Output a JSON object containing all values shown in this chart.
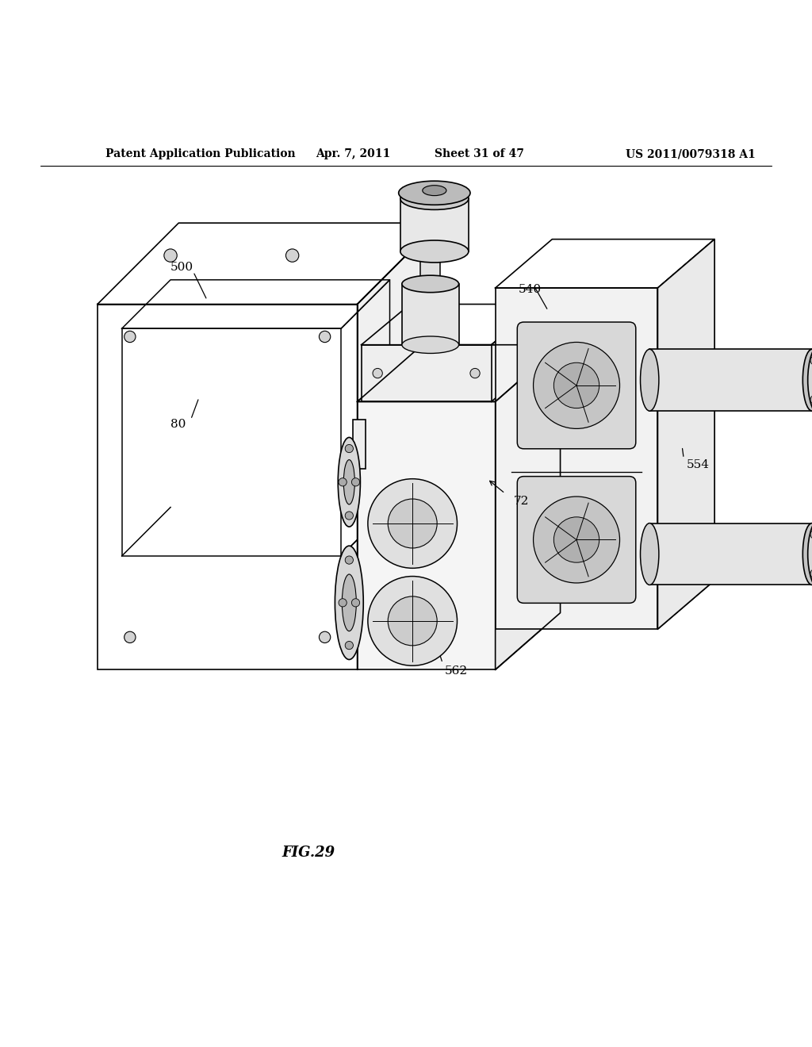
{
  "title": "Patent Application Publication",
  "date": "Apr. 7, 2011",
  "sheet": "Sheet 31 of 47",
  "patent_num": "US 2011/0079318 A1",
  "fig_label": "FIG.29",
  "bg_color": "#ffffff",
  "line_color": "#000000",
  "line_width": 1.2,
  "text_color": "#000000"
}
